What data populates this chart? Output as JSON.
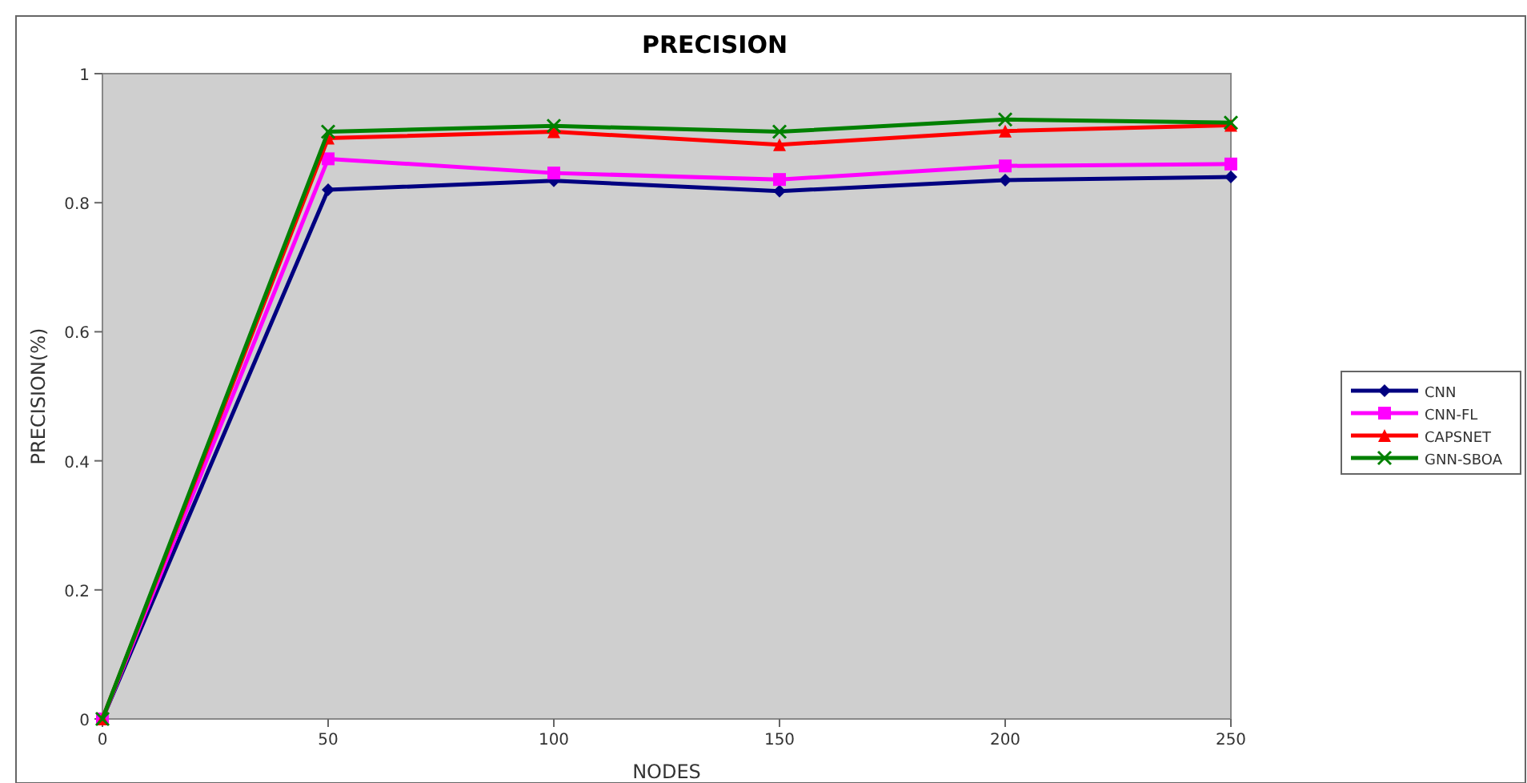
{
  "chart_data": {
    "type": "line",
    "title": "PRECISION",
    "xlabel": "NODES",
    "ylabel": "PRECISION(%)",
    "x": [
      0,
      50,
      100,
      150,
      200,
      250
    ],
    "xlim": [
      0,
      250
    ],
    "xticks": [
      0,
      50,
      100,
      150,
      200,
      250
    ],
    "ylim": [
      0,
      1
    ],
    "yticks": [
      0,
      0.2,
      0.4,
      0.6,
      0.8,
      1
    ],
    "grid": false,
    "legend": "right",
    "series": [
      {
        "name": "CNN",
        "color": "#000080",
        "marker": "diamond",
        "values": [
          0,
          0.82,
          0.834,
          0.818,
          0.835,
          0.84
        ]
      },
      {
        "name": "CNN-FL",
        "color": "#ff00ff",
        "marker": "square",
        "values": [
          0,
          0.868,
          0.846,
          0.836,
          0.857,
          0.86
        ]
      },
      {
        "name": "CAPSNET",
        "color": "#ff0000",
        "marker": "triangle",
        "values": [
          0,
          0.9,
          0.91,
          0.89,
          0.911,
          0.92
        ]
      },
      {
        "name": "GNN-SBOA",
        "color": "#008000",
        "marker": "cross",
        "values": [
          0,
          0.91,
          0.919,
          0.91,
          0.929,
          0.924
        ]
      }
    ]
  }
}
